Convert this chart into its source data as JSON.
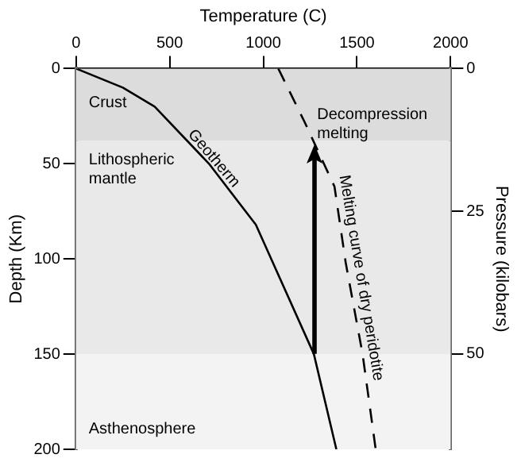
{
  "chart_data": {
    "type": "line",
    "xlabel": "Temperature (C)",
    "ylabel": "Depth (Km)",
    "y2label": "Pressure (kilobars)",
    "xlim": [
      0,
      2000
    ],
    "xticks": [
      0,
      500,
      1000,
      1500,
      2000
    ],
    "ylim": [
      200,
      0
    ],
    "yticks": [
      0,
      50,
      100,
      150,
      200
    ],
    "y2lim": [
      66.7,
      0
    ],
    "y2ticks": [
      0,
      25,
      50
    ],
    "series": [
      {
        "name": "Geotherm",
        "color": "#000000",
        "line_style": "solid",
        "x": [
          0,
          250,
          420,
          710,
          960,
          1270,
          1390
        ],
        "values": [
          0,
          10,
          20,
          50,
          82,
          150,
          200
        ]
      },
      {
        "name": "Melting curve of dry peridotite",
        "color": "#000000",
        "line_style": "dashed",
        "x": [
          1080,
          1220,
          1380,
          1440,
          1530,
          1600
        ],
        "values": [
          0,
          28,
          62,
          102,
          150,
          200
        ]
      }
    ],
    "bands": [
      {
        "axis": "y",
        "from": 0,
        "to": 38,
        "label": "Crust",
        "color": "#dcdcdc"
      },
      {
        "axis": "y",
        "from": 38,
        "to": 150,
        "label": "Lithospheric mantle",
        "color": "#e9e9e9"
      },
      {
        "axis": "y",
        "from": 150,
        "to": 200,
        "label": "Asthenosphere",
        "color": "#f3f3f3"
      }
    ],
    "annotations": [
      {
        "text": "Decompression melting",
        "x": 1270,
        "y": 40
      }
    ],
    "marker": "none",
    "grid": false,
    "legend": false
  }
}
